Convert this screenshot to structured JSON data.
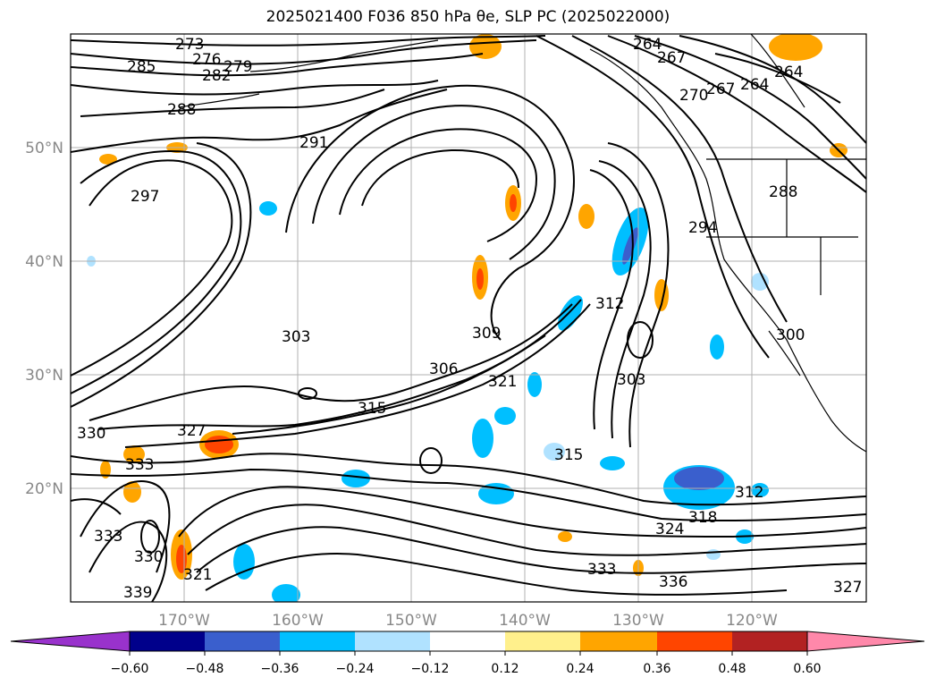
{
  "title": "2025021400 F036 850 hPa θe, SLP PC (2025022000)",
  "map": {
    "lat_labels": [
      "50°N",
      "40°N",
      "30°N",
      "20°N"
    ],
    "lon_labels": [
      "170°W",
      "160°W",
      "150°W",
      "140°W",
      "130°W",
      "120°W"
    ],
    "contour_labels": [
      "273",
      "276",
      "279",
      "282",
      "285",
      "288",
      "291",
      "297",
      "303",
      "306",
      "309",
      "312",
      "315",
      "318",
      "321",
      "324",
      "327",
      "330",
      "333",
      "336",
      "339",
      "264",
      "267",
      "270",
      "294",
      "300"
    ],
    "colors": {
      "cb": [
        "#9932cc",
        "#00008b",
        "#3a5fcd",
        "#00bfff",
        "#b0e2ff",
        "#ffffff",
        "#fff08c",
        "#ffa500",
        "#ff4500",
        "#b22222",
        "#ff88aa"
      ]
    }
  },
  "colorbar": {
    "ticks": [
      "−0.60",
      "−0.48",
      "−0.36",
      "−0.24",
      "−0.12",
      "0.12",
      "0.24",
      "0.36",
      "0.48",
      "0.60"
    ]
  }
}
